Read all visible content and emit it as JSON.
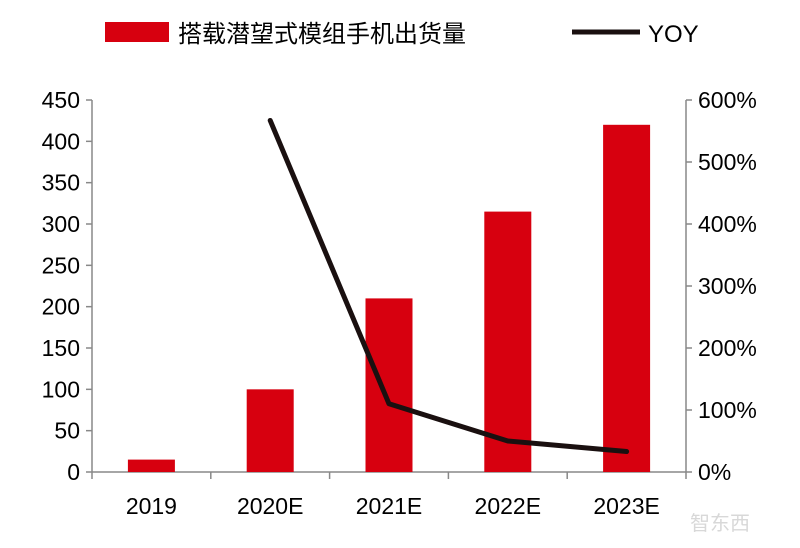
{
  "chart_data": {
    "type": "bar+line",
    "categories": [
      "2019",
      "2020E",
      "2021E",
      "2022E",
      "2023E"
    ],
    "series": [
      {
        "name": "搭载潜望式模组手机出货量",
        "type": "bar",
        "axis": "left",
        "color": "#d7000f",
        "values": [
          15,
          100,
          210,
          315,
          420
        ]
      },
      {
        "name": "YOY",
        "type": "line",
        "axis": "right",
        "color": "#1a1010",
        "values": [
          null,
          567,
          110,
          50,
          33
        ]
      }
    ],
    "left_axis": {
      "ylim": [
        0,
        450
      ],
      "ticks": [
        "0",
        "50",
        "100",
        "150",
        "200",
        "250",
        "300",
        "350",
        "400",
        "450"
      ]
    },
    "right_axis": {
      "ylim": [
        0,
        600
      ],
      "unit": "%",
      "ticks": [
        "0%",
        "100%",
        "200%",
        "300%",
        "400%",
        "500%",
        "600%"
      ]
    },
    "legend": "top",
    "grid": false
  },
  "watermark": "智东西"
}
